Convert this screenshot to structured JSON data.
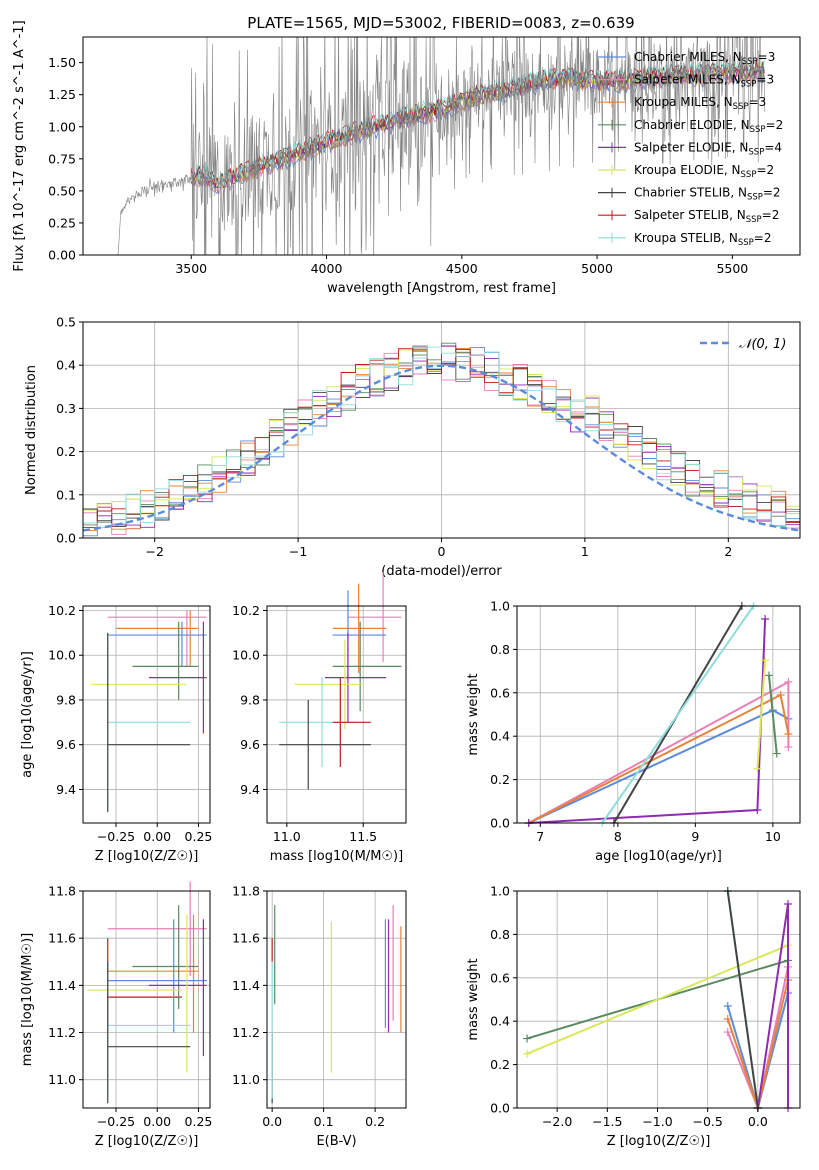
{
  "figure": {
    "title": "PLATE=1565, MJD=53002, FIBERID=0083, z=0.639"
  },
  "chart_data": [
    {
      "type": "line",
      "panel": "spectrum",
      "xlabel": "wavelength [Angstrom, rest frame]",
      "ylabel": "Flux [fλ 10^-17 erg cm^-2 s^-1 A^-1]",
      "xlim": [
        3100,
        5750
      ],
      "ylim": [
        0,
        1.7
      ],
      "xticks": [
        3500,
        4000,
        4500,
        5000,
        5500
      ],
      "yticks": [
        0.0,
        0.25,
        0.5,
        0.75,
        1.0,
        1.25,
        1.5
      ],
      "grid": false,
      "legend_position": "top-right",
      "observed_spectrum": {
        "color": "#808080",
        "description_points": [
          [
            3180,
            0.0
          ],
          [
            3230,
            0.0
          ],
          [
            3240,
            0.35
          ],
          [
            3280,
            0.45
          ],
          [
            3350,
            0.52
          ],
          [
            3420,
            0.55
          ],
          [
            3480,
            0.58
          ],
          [
            3500,
            0.6
          ],
          [
            3550,
            0.62
          ],
          [
            3600,
            0.55
          ],
          [
            3700,
            0.65
          ],
          [
            3800,
            0.72
          ],
          [
            3900,
            0.8
          ],
          [
            4000,
            0.88
          ],
          [
            4100,
            0.95
          ],
          [
            4200,
            1.02
          ],
          [
            4300,
            1.08
          ],
          [
            4400,
            1.12
          ],
          [
            4500,
            1.2
          ],
          [
            4600,
            1.26
          ],
          [
            4700,
            1.3
          ],
          [
            4800,
            1.36
          ],
          [
            4900,
            1.38
          ],
          [
            5000,
            1.35
          ],
          [
            5100,
            1.36
          ],
          [
            5200,
            1.38
          ],
          [
            5300,
            1.4
          ],
          [
            5400,
            1.41
          ],
          [
            5500,
            1.42
          ],
          [
            5620,
            1.44
          ]
        ]
      },
      "series": [
        {
          "name": "Chabrier MILES, N_SSP=3",
          "color": "#5b8bd9"
        },
        {
          "name": "Salpeter MILES, N_SSP=3",
          "color": "#e87fb6"
        },
        {
          "name": "Kroupa MILES, N_SSP=3",
          "color": "#e8823a"
        },
        {
          "name": "Chabrier ELODIE, N_SSP=2",
          "color": "#5a8a60"
        },
        {
          "name": "Salpeter ELODIE, N_SSP=4",
          "color": "#8e2bb0"
        },
        {
          "name": "Kroupa ELODIE, N_SSP=2",
          "color": "#d8e85a"
        },
        {
          "name": "Chabrier STELIB, N_SSP=2",
          "color": "#444444"
        },
        {
          "name": "Salpeter STELIB, N_SSP=2",
          "color": "#c21a1a"
        },
        {
          "name": "Kroupa STELIB, N_SSP=2",
          "color": "#8edcdc"
        }
      ]
    },
    {
      "type": "histogram",
      "panel": "residuals",
      "xlabel": "(data-model)/error",
      "ylabel": "Normed distribution",
      "xlim": [
        -2.5,
        2.5
      ],
      "ylim": [
        0,
        0.5
      ],
      "xticks": [
        -2,
        -1,
        0,
        1,
        2
      ],
      "yticks": [
        0.0,
        0.1,
        0.2,
        0.3,
        0.4,
        0.5
      ],
      "grid": true,
      "legend": "𝒩(0, 1)",
      "reference_curve": {
        "type": "gaussian",
        "mu": 0,
        "sigma": 1,
        "color": "#5b8bd9",
        "style": "dashed"
      },
      "bin_width": 0.1,
      "approx_shape": "histograms follow a normal distribution with peak about 0.40–0.48 near x=0 and slightly heavier right tail (~0.05 at x=2.5)"
    },
    {
      "type": "errorbar",
      "panel": "age_vs_Z",
      "xlabel": "Z [log10(Z/Z☉)]",
      "ylabel": "age  [log10(age/yr)]",
      "xlim": [
        -0.45,
        0.32
      ],
      "ylim": [
        9.25,
        10.22
      ],
      "xticks": [
        -0.25,
        0.0,
        0.25
      ],
      "yticks": [
        9.4,
        9.6,
        9.8,
        10.0,
        10.2
      ],
      "grid": true,
      "points": [
        {
          "color": "#e87fb6",
          "x": [
            -0.3,
            0.3
          ],
          "y": 10.17,
          "xc": 0.18,
          "ylim": [
            9.95,
            10.2
          ]
        },
        {
          "color": "#e8823a",
          "x": [
            -0.25,
            0.25
          ],
          "y": 10.12,
          "xc": 0.2,
          "ylim": [
            9.95,
            10.2
          ]
        },
        {
          "color": "#5b8bd9",
          "x": [
            -0.3,
            0.3
          ],
          "y": 10.09,
          "xc": 0.15,
          "ylim": [
            9.95,
            10.15
          ]
        },
        {
          "color": "#5a8a60",
          "x": [
            -0.15,
            0.25
          ],
          "y": 9.95,
          "xc": 0.13,
          "ylim": [
            9.8,
            10.15
          ]
        },
        {
          "color": "#8e2bb0",
          "x": [
            -0.05,
            0.3
          ],
          "y": 9.9,
          "xc": 0.28,
          "ylim": [
            9.65,
            10.15
          ]
        },
        {
          "color": "#d8e85a",
          "x": [
            -0.4,
            0.18
          ],
          "y": 9.87,
          "xc": -0.3,
          "ylim": [
            9.6,
            10.1
          ]
        },
        {
          "color": "#8edcdc",
          "x": [
            -0.3,
            0.2
          ],
          "y": 9.7,
          "xc": -0.3,
          "ylim": [
            9.3,
            10.1
          ]
        },
        {
          "color": "#444444",
          "x": [
            -0.3,
            0.2
          ],
          "y": 9.6,
          "xc": -0.3,
          "ylim": [
            9.3,
            10.1
          ]
        }
      ]
    },
    {
      "type": "errorbar",
      "panel": "age_vs_mass",
      "xlabel": "mass [log10(M/M☉)]",
      "ylabel": "",
      "xlim": [
        10.87,
        11.78
      ],
      "ylim": [
        9.25,
        10.22
      ],
      "xticks": [
        11.0,
        11.5
      ],
      "yticks": [
        9.4,
        9.6,
        9.8,
        10.0,
        10.2
      ],
      "grid": true,
      "points": [
        {
          "color": "#e87fb6",
          "x": [
            11.4,
            11.75
          ],
          "y": 10.17,
          "xc": 11.63
        },
        {
          "color": "#e8823a",
          "x": [
            11.3,
            11.65
          ],
          "y": 10.12,
          "xc": 11.47
        },
        {
          "color": "#5b8bd9",
          "x": [
            11.3,
            11.65
          ],
          "y": 10.09,
          "xc": 11.4
        },
        {
          "color": "#5a8a60",
          "x": [
            11.3,
            11.75
          ],
          "y": 9.95,
          "xc": 11.48
        },
        {
          "color": "#8e2bb0",
          "x": [
            11.25,
            11.65
          ],
          "y": 9.9,
          "xc": 11.4
        },
        {
          "color": "#d8e85a",
          "x": [
            11.05,
            11.5
          ],
          "y": 9.87,
          "xc": 11.38
        },
        {
          "color": "#8edcdc",
          "x": [
            10.95,
            11.45
          ],
          "y": 9.7,
          "xc": 11.23
        },
        {
          "color": "#c21a1a",
          "x": [
            11.3,
            11.55
          ],
          "y": 9.7,
          "xc": 11.35
        },
        {
          "color": "#444444",
          "x": [
            10.95,
            11.55
          ],
          "y": 9.6,
          "xc": 11.14
        }
      ]
    },
    {
      "type": "line",
      "panel": "mass_weight_vs_age",
      "xlabel": "age  [log10(age/yr)]",
      "ylabel": "mass weight",
      "xlim": [
        6.7,
        10.35
      ],
      "ylim": [
        0,
        1.0
      ],
      "xticks": [
        7,
        8,
        9,
        10
      ],
      "yticks": [
        0.0,
        0.2,
        0.4,
        0.6,
        0.8,
        1.0
      ],
      "grid": true,
      "series": [
        {
          "color": "#5b8bd9",
          "points": [
            [
              6.85,
              0.0
            ],
            [
              10.0,
              0.52
            ],
            [
              10.2,
              0.48
            ]
          ]
        },
        {
          "color": "#e87fb6",
          "points": [
            [
              6.85,
              0.0
            ],
            [
              10.2,
              0.65
            ],
            [
              10.2,
              0.35
            ]
          ]
        },
        {
          "color": "#e8823a",
          "points": [
            [
              6.85,
              0.0
            ],
            [
              10.1,
              0.59
            ],
            [
              10.2,
              0.41
            ]
          ]
        },
        {
          "color": "#5a8a60",
          "points": [
            [
              9.95,
              0.68
            ],
            [
              10.05,
              0.32
            ]
          ]
        },
        {
          "color": "#8e2bb0",
          "points": [
            [
              6.85,
              0.0
            ],
            [
              9.8,
              0.06
            ],
            [
              9.9,
              0.94
            ]
          ]
        },
        {
          "color": "#d8e85a",
          "points": [
            [
              9.8,
              0.25
            ],
            [
              9.9,
              0.75
            ]
          ]
        },
        {
          "color": "#444444",
          "points": [
            [
              7.95,
              0.0
            ],
            [
              9.6,
              1.0
            ]
          ]
        },
        {
          "color": "#8edcdc",
          "points": [
            [
              7.8,
              0.0
            ],
            [
              9.75,
              1.0
            ]
          ]
        }
      ]
    },
    {
      "type": "errorbar",
      "panel": "mass_vs_Z",
      "xlabel": "Z [log10(Z/Z☉)]",
      "ylabel": "mass [log10(M/M☉)]",
      "xlim": [
        -0.45,
        0.32
      ],
      "ylim": [
        10.88,
        11.8
      ],
      "xticks": [
        -0.25,
        0.0,
        0.25
      ],
      "yticks": [
        11.0,
        11.2,
        11.4,
        11.6,
        11.8
      ],
      "grid": true
    },
    {
      "type": "errorbar",
      "panel": "mass_vs_EBV",
      "xlabel": "E(B-V)",
      "ylabel": "",
      "xlim": [
        -0.01,
        0.26
      ],
      "ylim": [
        10.88,
        11.8
      ],
      "xticks": [
        0.0,
        0.1,
        0.2
      ],
      "yticks": [
        11.0,
        11.2,
        11.4,
        11.6,
        11.8
      ],
      "grid": true
    },
    {
      "type": "line",
      "panel": "mass_weight_vs_Z",
      "xlabel": "Z [log10(Z/Z☉)]",
      "ylabel": "mass weight",
      "xlim": [
        -2.4,
        0.42
      ],
      "ylim": [
        0,
        1.0
      ],
      "xticks": [
        -2.0,
        -1.5,
        -1.0,
        -0.5,
        0.0,
        0.5
      ],
      "yticks": [
        0.0,
        0.2,
        0.4,
        0.6,
        0.8,
        1.0
      ],
      "grid": true
    }
  ]
}
